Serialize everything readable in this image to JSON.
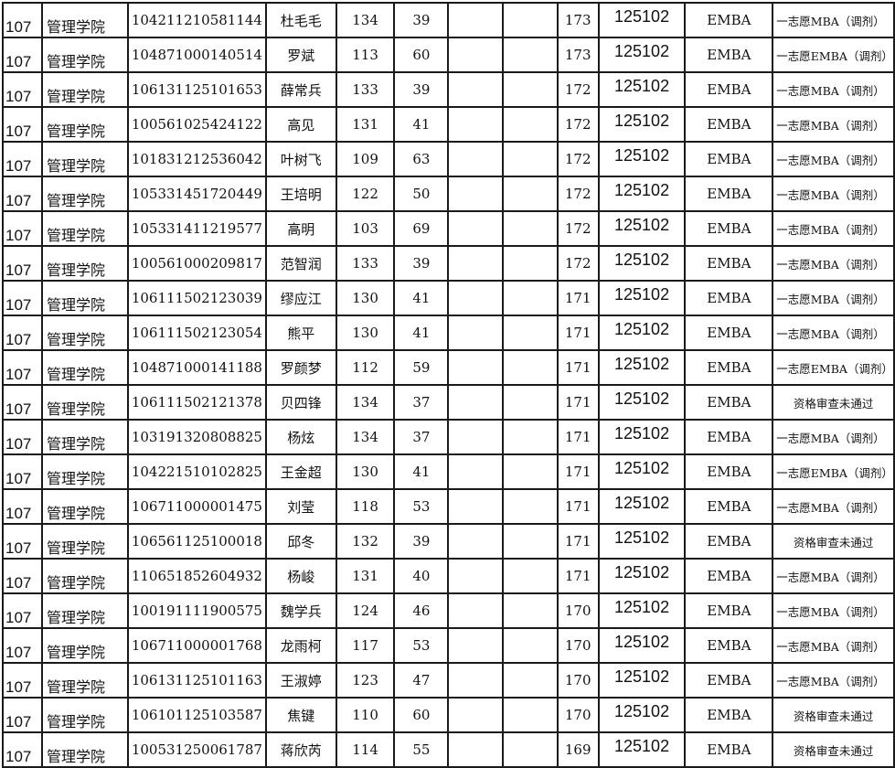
{
  "table": {
    "rows": [
      [
        "107",
        "管理学院",
        "104211210581144",
        "杜毛毛",
        "134",
        "39",
        "",
        "",
        "173",
        "125102",
        "EMBA",
        "一志愿MBA（调剂）"
      ],
      [
        "107",
        "管理学院",
        "104871000140514",
        "罗斌",
        "113",
        "60",
        "",
        "",
        "173",
        "125102",
        "EMBA",
        "一志愿EMBA（调剂）"
      ],
      [
        "107",
        "管理学院",
        "106131125101653",
        "薛常兵",
        "133",
        "39",
        "",
        "",
        "172",
        "125102",
        "EMBA",
        "一志愿MBA（调剂）"
      ],
      [
        "107",
        "管理学院",
        "100561025424122",
        "高见",
        "131",
        "41",
        "",
        "",
        "172",
        "125102",
        "EMBA",
        "一志愿MBA（调剂）"
      ],
      [
        "107",
        "管理学院",
        "101831212536042",
        "叶树飞",
        "109",
        "63",
        "",
        "",
        "172",
        "125102",
        "EMBA",
        "一志愿MBA（调剂）"
      ],
      [
        "107",
        "管理学院",
        "105331451720449",
        "王培明",
        "122",
        "50",
        "",
        "",
        "172",
        "125102",
        "EMBA",
        "一志愿MBA（调剂）"
      ],
      [
        "107",
        "管理学院",
        "105331411219577",
        "高明",
        "103",
        "69",
        "",
        "",
        "172",
        "125102",
        "EMBA",
        "一志愿MBA（调剂）"
      ],
      [
        "107",
        "管理学院",
        "100561000209817",
        "范智润",
        "133",
        "39",
        "",
        "",
        "172",
        "125102",
        "EMBA",
        "一志愿MBA（调剂）"
      ],
      [
        "107",
        "管理学院",
        "106111502123039",
        "缪应江",
        "130",
        "41",
        "",
        "",
        "171",
        "125102",
        "EMBA",
        "一志愿MBA（调剂）"
      ],
      [
        "107",
        "管理学院",
        "106111502123054",
        "熊平",
        "130",
        "41",
        "",
        "",
        "171",
        "125102",
        "EMBA",
        "一志愿MBA（调剂）"
      ],
      [
        "107",
        "管理学院",
        "104871000141188",
        "罗颜梦",
        "112",
        "59",
        "",
        "",
        "171",
        "125102",
        "EMBA",
        "一志愿EMBA（调剂）"
      ],
      [
        "107",
        "管理学院",
        "106111502121378",
        "贝四锋",
        "134",
        "37",
        "",
        "",
        "171",
        "125102",
        "EMBA",
        "资格审查未通过"
      ],
      [
        "107",
        "管理学院",
        "103191320808825",
        "杨炫",
        "134",
        "37",
        "",
        "",
        "171",
        "125102",
        "EMBA",
        "一志愿MBA（调剂）"
      ],
      [
        "107",
        "管理学院",
        "104221510102825",
        "王金超",
        "130",
        "41",
        "",
        "",
        "171",
        "125102",
        "EMBA",
        "一志愿EMBA（调剂）"
      ],
      [
        "107",
        "管理学院",
        "106711000001475",
        "刘莹",
        "118",
        "53",
        "",
        "",
        "171",
        "125102",
        "EMBA",
        "一志愿MBA（调剂）"
      ],
      [
        "107",
        "管理学院",
        "106561125100018",
        "邱冬",
        "132",
        "39",
        "",
        "",
        "171",
        "125102",
        "EMBA",
        "资格审查未通过"
      ],
      [
        "107",
        "管理学院",
        "110651852604932",
        "杨峻",
        "131",
        "40",
        "",
        "",
        "171",
        "125102",
        "EMBA",
        "一志愿MBA（调剂）"
      ],
      [
        "107",
        "管理学院",
        "100191111900575",
        "魏学兵",
        "124",
        "46",
        "",
        "",
        "170",
        "125102",
        "EMBA",
        "一志愿MBA（调剂）"
      ],
      [
        "107",
        "管理学院",
        "106711000001768",
        "龙雨柯",
        "117",
        "53",
        "",
        "",
        "170",
        "125102",
        "EMBA",
        "一志愿MBA（调剂）"
      ],
      [
        "107",
        "管理学院",
        "106131125101163",
        "王淑婷",
        "123",
        "47",
        "",
        "",
        "170",
        "125102",
        "EMBA",
        "一志愿MBA（调剂）"
      ],
      [
        "107",
        "管理学院",
        "106101125103587",
        "焦键",
        "110",
        "60",
        "",
        "",
        "170",
        "125102",
        "EMBA",
        "资格审查未通过"
      ],
      [
        "107",
        "管理学院",
        "100531250061787",
        "蒋欣芮",
        "114",
        "55",
        "",
        "",
        "169",
        "125102",
        "EMBA",
        "资格审查未通过"
      ]
    ]
  }
}
